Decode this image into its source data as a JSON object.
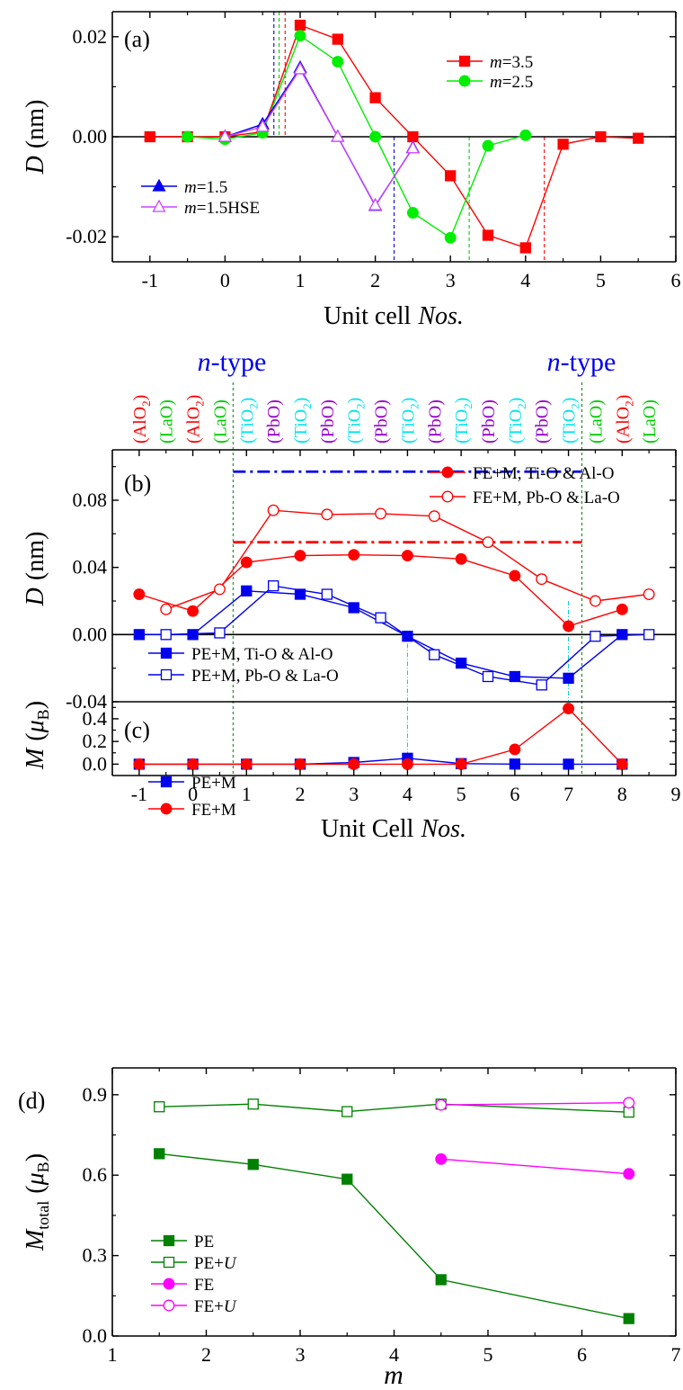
{
  "chart_data": [
    {
      "id": "a",
      "type": "line",
      "panel_label": "(a)",
      "xlabel": "Unit cell",
      "xlabel_italic": "Nos.",
      "ylabel": "D",
      "ylabel_unit": "(nm)",
      "xlim": [
        -1.5,
        6
      ],
      "ylim": [
        -0.025,
        0.025
      ],
      "xticks": [
        -1,
        0,
        1,
        2,
        3,
        4,
        5,
        6
      ],
      "xtick_labels": [
        "-1",
        "0",
        "1",
        "2",
        "3",
        "4",
        "5",
        "6"
      ],
      "yticks": [
        -0.02,
        0.0,
        0.02
      ],
      "ytick_labels": [
        "-0.02",
        "0.00",
        "0.02"
      ],
      "zero_line": true,
      "series": [
        {
          "name": "m=3.5",
          "prefix": "m",
          "suffix": "=3.5",
          "color": "#ff0000",
          "marker": "square",
          "filled": true,
          "x": [
            -1,
            -0.5,
            0,
            0.5,
            1,
            1.5,
            2,
            2.5,
            3,
            3.5,
            4,
            4.5,
            5,
            5.5
          ],
          "y": [
            0.0,
            0.0,
            0.0,
            0.001,
            0.0223,
            0.0195,
            0.0078,
            0.0,
            -0.0078,
            -0.0197,
            -0.0222,
            -0.0015,
            0.0,
            -0.0003
          ]
        },
        {
          "name": "m=2.5",
          "prefix": "m",
          "suffix": "=2.5",
          "color": "#00ee00",
          "marker": "circle",
          "filled": true,
          "x": [
            -0.5,
            0,
            0.5,
            1,
            1.5,
            2,
            2.5,
            3,
            3.5,
            4
          ],
          "y": [
            0.0,
            -0.0005,
            0.0008,
            0.0202,
            0.015,
            0.0,
            -0.0152,
            -0.0202,
            -0.0018,
            0.0003
          ]
        },
        {
          "name": "m=1.5",
          "prefix": "m",
          "suffix": "=1.5",
          "color": "#0000ee",
          "marker": "triangle",
          "filled": true,
          "x": [
            0,
            0.5,
            1,
            1.5,
            2,
            2.5
          ],
          "y": [
            0.0,
            0.0025,
            0.0138,
            0.0,
            -0.0138,
            -0.0022
          ]
        },
        {
          "name": "m=1.5HSE",
          "prefix": "m",
          "suffix": "=1.5HSE",
          "color": "#cc44ff",
          "marker": "triangle",
          "filled": false,
          "x": [
            0,
            0.5,
            1,
            1.5,
            2,
            2.5
          ],
          "y": [
            0.0,
            0.002,
            0.0135,
            0.0,
            -0.0137,
            -0.0023
          ]
        }
      ],
      "vlines": [
        {
          "x": 0.65,
          "color": "#0000ee",
          "from": 0.025,
          "to": 0.0
        },
        {
          "x": 0.72,
          "color": "#00cc00",
          "from": 0.025,
          "to": 0.0
        },
        {
          "x": 0.8,
          "color": "#ff0000",
          "from": 0.025,
          "to": 0.0
        },
        {
          "x": 2.25,
          "color": "#0000ee",
          "from": 0.0,
          "to": -0.025
        },
        {
          "x": 3.25,
          "color": "#00cc00",
          "from": 0.0,
          "to": -0.025
        },
        {
          "x": 4.25,
          "color": "#ff0000",
          "from": 0.0,
          "to": -0.025
        }
      ]
    },
    {
      "id": "b",
      "type": "line",
      "panel_label": "(b)",
      "ylabel": "D",
      "ylabel_unit": "(nm)",
      "xlim": [
        -1.5,
        9
      ],
      "ylim": [
        -0.04,
        0.11
      ],
      "yticks": [
        -0.04,
        0.0,
        0.04,
        0.08
      ],
      "ytick_labels": [
        "-0.04",
        "0.00",
        "0.04",
        "0.08"
      ],
      "zero_line": true,
      "n_type_label": "n",
      "n_type_suffix": "-type",
      "layer_labels": [
        {
          "x": -1,
          "text": "(AlO",
          "sub": "2",
          "end": ")",
          "color": "#ff0000"
        },
        {
          "x": -0.5,
          "text": "(LaO)",
          "sub": "",
          "end": "",
          "color": "#00cc00"
        },
        {
          "x": 0,
          "text": "(AlO",
          "sub": "2",
          "end": ")",
          "color": "#ff0000"
        },
        {
          "x": 0.5,
          "text": "(LaO)",
          "sub": "",
          "end": "",
          "color": "#00cc00"
        },
        {
          "x": 1,
          "text": "(TiO",
          "sub": "2",
          "end": ")",
          "color": "#00e5ee"
        },
        {
          "x": 1.5,
          "text": "(PbO)",
          "sub": "",
          "end": "",
          "color": "#9900cc"
        },
        {
          "x": 2,
          "text": "(TiO",
          "sub": "2",
          "end": ")",
          "color": "#00e5ee"
        },
        {
          "x": 2.5,
          "text": "(PbO)",
          "sub": "",
          "end": "",
          "color": "#9900cc"
        },
        {
          "x": 3,
          "text": "(TiO",
          "sub": "2",
          "end": ")",
          "color": "#00e5ee"
        },
        {
          "x": 3.5,
          "text": "(PbO)",
          "sub": "",
          "end": "",
          "color": "#9900cc"
        },
        {
          "x": 4,
          "text": "(TiO",
          "sub": "2",
          "end": ")",
          "color": "#00e5ee"
        },
        {
          "x": 4.5,
          "text": "(PbO)",
          "sub": "",
          "end": "",
          "color": "#9900cc"
        },
        {
          "x": 5,
          "text": "(TiO",
          "sub": "2",
          "end": ")",
          "color": "#00e5ee"
        },
        {
          "x": 5.5,
          "text": "(PbO)",
          "sub": "",
          "end": "",
          "color": "#9900cc"
        },
        {
          "x": 6,
          "text": "(TiO",
          "sub": "2",
          "end": ")",
          "color": "#00e5ee"
        },
        {
          "x": 6.5,
          "text": "(PbO)",
          "sub": "",
          "end": "",
          "color": "#9900cc"
        },
        {
          "x": 7,
          "text": "(TiO",
          "sub": "2",
          "end": ")",
          "color": "#00e5ee"
        },
        {
          "x": 7.5,
          "text": "(LaO)",
          "sub": "",
          "end": "",
          "color": "#00cc00"
        },
        {
          "x": 8,
          "text": "(AlO",
          "sub": "2",
          "end": ")",
          "color": "#ff0000"
        },
        {
          "x": 8.5,
          "text": "(LaO)",
          "sub": "",
          "end": "",
          "color": "#00cc00"
        }
      ],
      "series": [
        {
          "name": "FE+M, Ti-O & Al-O",
          "color": "#ff0000",
          "marker": "circle",
          "filled": true,
          "x": [
            -1,
            0,
            1,
            2,
            3,
            4,
            5,
            6,
            7,
            8
          ],
          "y": [
            0.024,
            0.014,
            0.043,
            0.047,
            0.0475,
            0.047,
            0.045,
            0.035,
            0.005,
            0.015
          ]
        },
        {
          "name": "FE+M, Pb-O & La-O",
          "color": "#ff0000",
          "marker": "circle",
          "filled": false,
          "x": [
            -0.5,
            0.5,
            1.5,
            2.5,
            3.5,
            4.5,
            5.5,
            6.5,
            7.5,
            8.5
          ],
          "y": [
            0.015,
            0.027,
            0.074,
            0.0715,
            0.072,
            0.0705,
            0.055,
            0.033,
            0.02,
            0.024
          ]
        },
        {
          "name": "PE+M, Ti-O & Al-O",
          "color": "#0000ee",
          "marker": "square",
          "filled": true,
          "x": [
            -1,
            0,
            1,
            2,
            3,
            4,
            5,
            6,
            7,
            8
          ],
          "y": [
            0.0,
            0.0,
            0.026,
            0.024,
            0.016,
            -0.001,
            -0.017,
            -0.025,
            -0.026,
            0.0
          ]
        },
        {
          "name": "PE+M, Pb-O & La-O",
          "color": "#0000ee",
          "marker": "square",
          "filled": false,
          "x": [
            -0.5,
            0.5,
            1.5,
            2.5,
            3.5,
            4.5,
            5.5,
            6.5,
            7.5,
            8.5
          ],
          "y": [
            0.0,
            0.001,
            0.029,
            0.024,
            0.01,
            -0.012,
            -0.025,
            -0.03,
            -0.001,
            0.0
          ]
        }
      ],
      "hlines": [
        {
          "y": 0.097,
          "x0": 0.75,
          "x1": 7.25,
          "color": "#0000ee",
          "style": "dashdot"
        },
        {
          "y": 0.055,
          "x0": 0.75,
          "x1": 7.25,
          "color": "#ff0000",
          "style": "dashdot"
        }
      ]
    },
    {
      "id": "c",
      "type": "line",
      "panel_label": "(c)",
      "xlabel": "Unit Cell",
      "xlabel_italic": "Nos.",
      "ylabel": "M",
      "ylabel_unit": "μ",
      "ylabel_unit_sub": "B",
      "xlim": [
        -1.5,
        9
      ],
      "ylim": [
        -0.1,
        0.55
      ],
      "xticks": [
        -1,
        0,
        1,
        2,
        3,
        4,
        5,
        6,
        7,
        8,
        9
      ],
      "xtick_labels": [
        "-1",
        "0",
        "1",
        "2",
        "3",
        "4",
        "5",
        "6",
        "7",
        "8",
        "9"
      ],
      "yticks": [
        0.0,
        0.2,
        0.4
      ],
      "ytick_labels": [
        "0.0",
        "0.2",
        "0.4"
      ],
      "series": [
        {
          "name": "PE+M",
          "color": "#0000ee",
          "marker": "square",
          "filled": true,
          "x": [
            -1,
            0,
            1,
            2,
            3,
            4,
            5,
            6,
            7,
            8
          ],
          "y": [
            0.0,
            0.0,
            0.0,
            0.0,
            0.015,
            0.052,
            0.005,
            0.001,
            0.0,
            0.0
          ]
        },
        {
          "name": "FE+M",
          "color": "#ff0000",
          "marker": "circle",
          "filled": true,
          "x": [
            -1,
            0,
            1,
            2,
            3,
            4,
            5,
            6,
            7,
            8
          ],
          "y": [
            0.0,
            0.0,
            0.0,
            0.0,
            0.0,
            0.0,
            0.0,
            0.13,
            0.49,
            0.0
          ]
        }
      ]
    },
    {
      "id": "d",
      "type": "line",
      "panel_label": "(d)",
      "xlabel": "m",
      "ylabel": "M",
      "ylabel_sub": "total",
      "ylabel_unit": "μ",
      "ylabel_unit_sub": "B",
      "xlim": [
        1,
        7
      ],
      "ylim": [
        0.0,
        1.0
      ],
      "xticks": [
        1,
        2,
        3,
        4,
        5,
        6,
        7
      ],
      "xtick_labels": [
        "1",
        "2",
        "3",
        "4",
        "5",
        "6",
        "7"
      ],
      "yticks": [
        0.0,
        0.3,
        0.6,
        0.9
      ],
      "ytick_labels": [
        "0.0",
        "0.3",
        "0.6",
        "0.9"
      ],
      "series": [
        {
          "name": "PE",
          "color": "#008000",
          "marker": "square",
          "filled": true,
          "x": [
            1.5,
            2.5,
            3.5,
            4.5,
            6.5
          ],
          "y": [
            0.68,
            0.64,
            0.585,
            0.21,
            0.065
          ]
        },
        {
          "name": "PE+U",
          "prefix": "PE+",
          "italic": "U",
          "color": "#008000",
          "marker": "square",
          "filled": false,
          "x": [
            1.5,
            2.5,
            3.5,
            4.5,
            6.5
          ],
          "y": [
            0.855,
            0.865,
            0.837,
            0.865,
            0.835
          ]
        },
        {
          "name": "FE",
          "color": "#ff00ff",
          "marker": "circle",
          "filled": true,
          "x": [
            4.5,
            6.5
          ],
          "y": [
            0.66,
            0.605
          ]
        },
        {
          "name": "FE+U",
          "prefix": "FE+",
          "italic": "U",
          "color": "#ff00ff",
          "marker": "circle",
          "filled": false,
          "x": [
            4.5,
            6.5
          ],
          "y": [
            0.862,
            0.87
          ]
        }
      ]
    }
  ]
}
